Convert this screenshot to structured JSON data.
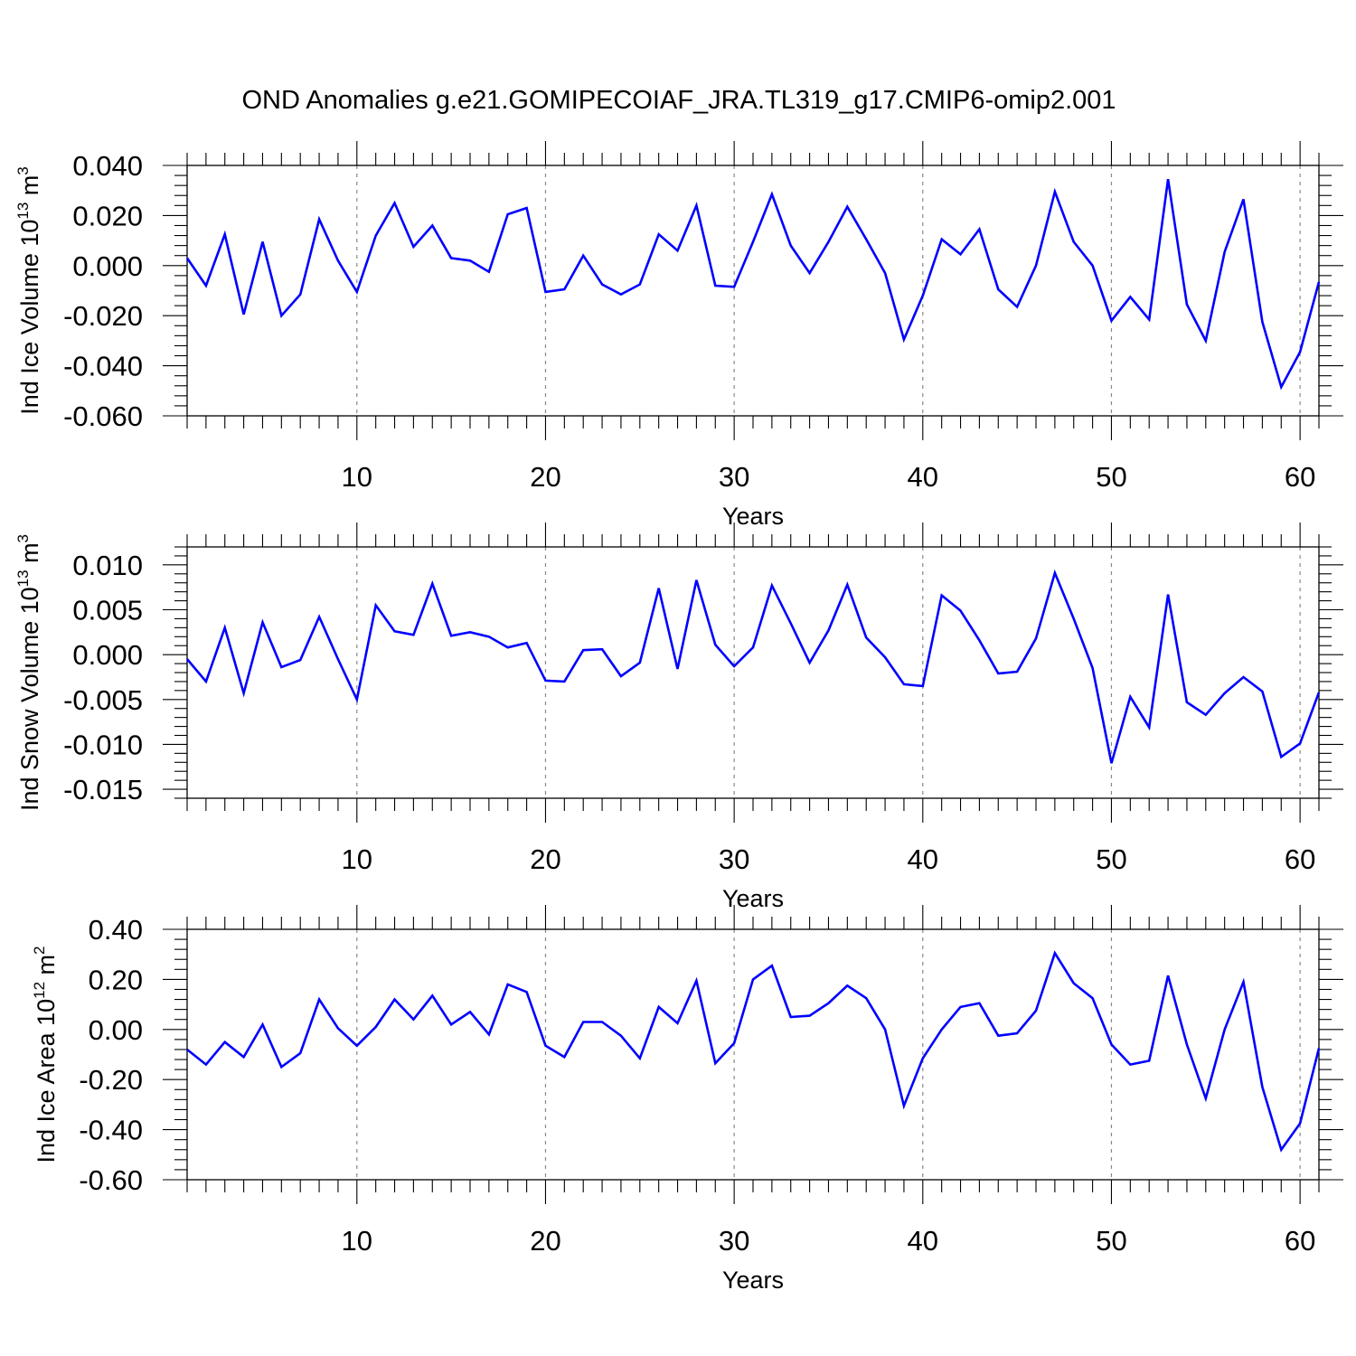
{
  "title": "OND Anomalies g.e21.GOMIPECOIAF_JRA.TL319_g17.CMIP6-omip2.001",
  "line_color": "#0000ff",
  "chart_data": [
    {
      "type": "line",
      "xlabel": "Years",
      "ylabel": {
        "text": "Ind Ice Volume 10",
        "exponent": "13",
        "unit": " m",
        "unit_exponent": "3"
      },
      "xlim": [
        1,
        61
      ],
      "ylim": [
        -0.06,
        0.04
      ],
      "x_ticks": [
        10,
        20,
        30,
        40,
        50,
        60
      ],
      "x_tick_labels": [
        "10",
        "20",
        "30",
        "40",
        "50",
        "60"
      ],
      "y_ticks": [
        -0.06,
        -0.04,
        -0.02,
        0.0,
        0.02,
        0.04
      ],
      "y_tick_labels": [
        "-0.060",
        "-0.040",
        "-0.020",
        "0.000",
        "0.020",
        "0.040"
      ],
      "x": [
        1,
        2,
        3,
        4,
        5,
        6,
        7,
        8,
        9,
        10,
        11,
        12,
        13,
        14,
        15,
        16,
        17,
        18,
        19,
        20,
        21,
        22,
        23,
        24,
        25,
        26,
        27,
        28,
        29,
        30,
        31,
        32,
        33,
        34,
        35,
        36,
        37,
        38,
        39,
        40,
        41,
        42,
        43,
        44,
        45,
        46,
        47,
        48,
        49,
        50,
        51,
        52,
        53,
        54,
        55,
        56,
        57,
        58,
        59,
        60,
        61
      ],
      "values": [
        0.003,
        -0.008,
        0.0125,
        -0.0195,
        0.0095,
        -0.02,
        -0.0115,
        0.0185,
        0.002,
        -0.0105,
        0.012,
        0.025,
        0.0075,
        0.016,
        0.003,
        0.002,
        -0.0025,
        0.0205,
        0.023,
        -0.0105,
        -0.0095,
        0.004,
        -0.0075,
        -0.0115,
        -0.0075,
        0.0125,
        0.006,
        0.024,
        -0.008,
        -0.0085,
        0.0095,
        0.0285,
        0.008,
        -0.003,
        0.0095,
        0.0235,
        0.0105,
        -0.003,
        -0.0295,
        -0.012,
        0.0105,
        0.0045,
        0.0145,
        -0.0095,
        -0.0165,
        0.0,
        0.0295,
        0.0095,
        0.0,
        -0.022,
        -0.0125,
        -0.0215,
        0.0345,
        -0.0155,
        -0.03,
        0.0055,
        0.0265,
        -0.0225,
        -0.0485,
        -0.0345,
        -0.0065
      ]
    },
    {
      "type": "line",
      "xlabel": "Years",
      "ylabel": {
        "text": "Ind Snow Volume 10",
        "exponent": "13",
        "unit": " m",
        "unit_exponent": "3"
      },
      "xlim": [
        1,
        61
      ],
      "ylim": [
        -0.016,
        0.012
      ],
      "x_ticks": [
        10,
        20,
        30,
        40,
        50,
        60
      ],
      "x_tick_labels": [
        "10",
        "20",
        "30",
        "40",
        "50",
        "60"
      ],
      "y_ticks": [
        -0.015,
        -0.01,
        -0.005,
        0.0,
        0.005,
        0.01
      ],
      "y_tick_labels": [
        "-0.015",
        "-0.010",
        "-0.005",
        "0.000",
        "0.005",
        "0.010"
      ],
      "x": [
        1,
        2,
        3,
        4,
        5,
        6,
        7,
        8,
        9,
        10,
        11,
        12,
        13,
        14,
        15,
        16,
        17,
        18,
        19,
        20,
        21,
        22,
        23,
        24,
        25,
        26,
        27,
        28,
        29,
        30,
        31,
        32,
        33,
        34,
        35,
        36,
        37,
        38,
        39,
        40,
        41,
        42,
        43,
        44,
        45,
        46,
        47,
        48,
        49,
        50,
        51,
        52,
        53,
        54,
        55,
        56,
        57,
        58,
        59,
        60,
        61
      ],
      "values": [
        -0.0005,
        -0.003,
        0.003,
        -0.0043,
        0.0036,
        -0.0014,
        -0.0006,
        0.0042,
        -0.0005,
        -0.005,
        0.0055,
        0.0026,
        0.0022,
        0.0079,
        0.0021,
        0.0025,
        0.002,
        0.0008,
        0.0013,
        -0.0029,
        -0.003,
        0.0005,
        0.0006,
        -0.0024,
        -0.0009,
        0.0074,
        -0.0016,
        0.0083,
        0.0011,
        -0.0013,
        0.0008,
        0.0077,
        0.0035,
        -0.0009,
        0.0027,
        0.0078,
        0.0019,
        -0.0003,
        -0.0033,
        -0.0035,
        0.0066,
        0.0049,
        0.0016,
        -0.0021,
        -0.0019,
        0.0018,
        0.0091,
        0.004,
        -0.0015,
        -0.0121,
        -0.0047,
        -0.0081,
        0.0067,
        -0.0053,
        -0.0067,
        -0.0043,
        -0.0025,
        -0.0041,
        -0.0114,
        -0.0099,
        -0.0042
      ]
    },
    {
      "type": "line",
      "xlabel": "Years",
      "ylabel": {
        "text": "Ind Ice Area 10",
        "exponent": "12",
        "unit": " m",
        "unit_exponent": "2"
      },
      "xlim": [
        1,
        61
      ],
      "ylim": [
        -0.6,
        0.4
      ],
      "x_ticks": [
        10,
        20,
        30,
        40,
        50,
        60
      ],
      "x_tick_labels": [
        "10",
        "20",
        "30",
        "40",
        "50",
        "60"
      ],
      "y_ticks": [
        -0.6,
        -0.4,
        -0.2,
        0.0,
        0.2,
        0.4
      ],
      "y_tick_labels": [
        "-0.60",
        "-0.40",
        "-0.20",
        "0.00",
        "0.20",
        "0.40"
      ],
      "x": [
        1,
        2,
        3,
        4,
        5,
        6,
        7,
        8,
        9,
        10,
        11,
        12,
        13,
        14,
        15,
        16,
        17,
        18,
        19,
        20,
        21,
        22,
        23,
        24,
        25,
        26,
        27,
        28,
        29,
        30,
        31,
        32,
        33,
        34,
        35,
        36,
        37,
        38,
        39,
        40,
        41,
        42,
        43,
        44,
        45,
        46,
        47,
        48,
        49,
        50,
        51,
        52,
        53,
        54,
        55,
        56,
        57,
        58,
        59,
        60,
        61
      ],
      "values": [
        -0.08,
        -0.14,
        -0.05,
        -0.11,
        0.02,
        -0.15,
        -0.095,
        0.12,
        0.005,
        -0.065,
        0.01,
        0.12,
        0.04,
        0.135,
        0.02,
        0.07,
        -0.02,
        0.18,
        0.15,
        -0.065,
        -0.11,
        0.03,
        0.03,
        -0.025,
        -0.115,
        0.09,
        0.025,
        0.195,
        -0.135,
        -0.055,
        0.2,
        0.255,
        0.05,
        0.055,
        0.105,
        0.175,
        0.125,
        0.0,
        -0.305,
        -0.115,
        0.0,
        0.09,
        0.105,
        -0.025,
        -0.015,
        0.075,
        0.305,
        0.185,
        0.125,
        -0.06,
        -0.14,
        -0.125,
        0.215,
        -0.06,
        -0.275,
        0.0,
        0.19,
        -0.23,
        -0.48,
        -0.375,
        -0.075
      ]
    }
  ]
}
